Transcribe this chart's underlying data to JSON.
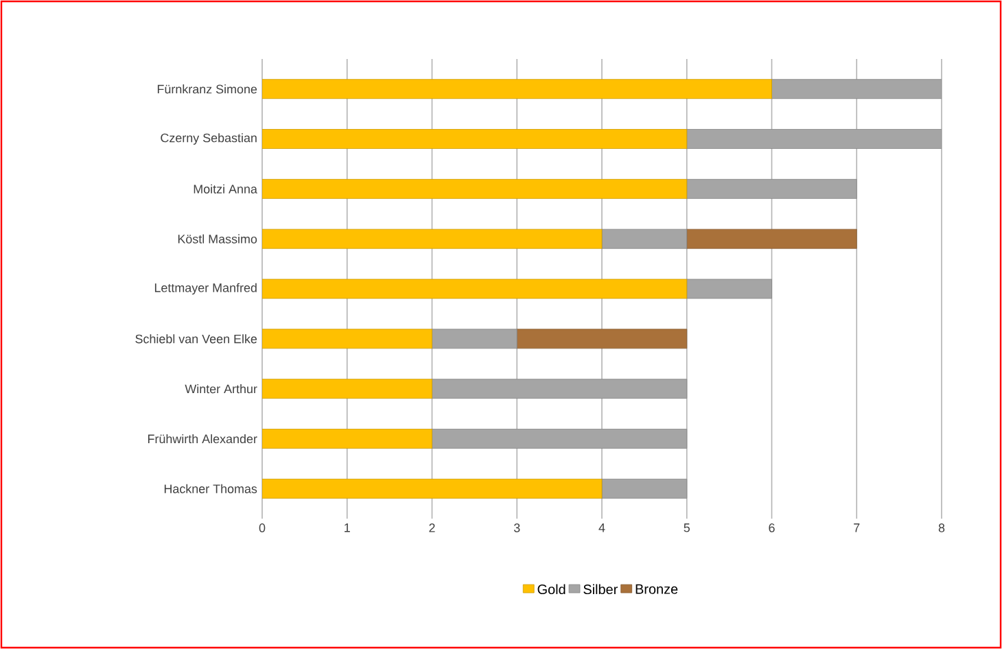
{
  "chart_data": {
    "type": "bar",
    "orientation": "horizontal",
    "stacked": true,
    "categories": [
      "Fürnkranz Simone",
      "Czerny Sebastian",
      "Moitzi Anna",
      "Köstl Massimo",
      "Lettmayer Manfred",
      "Schiebl van Veen Elke",
      "Winter Arthur",
      "Frühwirth Alexander",
      "Hackner Thomas"
    ],
    "series": [
      {
        "name": "Gold",
        "color": "#ffc000",
        "values": [
          6,
          5,
          5,
          4,
          5,
          2,
          2,
          2,
          4
        ]
      },
      {
        "name": "Silber",
        "color": "#a5a5a5",
        "values": [
          2,
          3,
          2,
          1,
          1,
          1,
          3,
          3,
          1
        ]
      },
      {
        "name": "Bronze",
        "color": "#a9713a",
        "values": [
          0,
          0,
          0,
          2,
          0,
          2,
          0,
          0,
          0
        ]
      }
    ],
    "xlim": [
      0,
      8
    ],
    "xticks": [
      0,
      1,
      2,
      3,
      4,
      5,
      6,
      7,
      8
    ],
    "grid": "x",
    "legend": "bottom"
  }
}
